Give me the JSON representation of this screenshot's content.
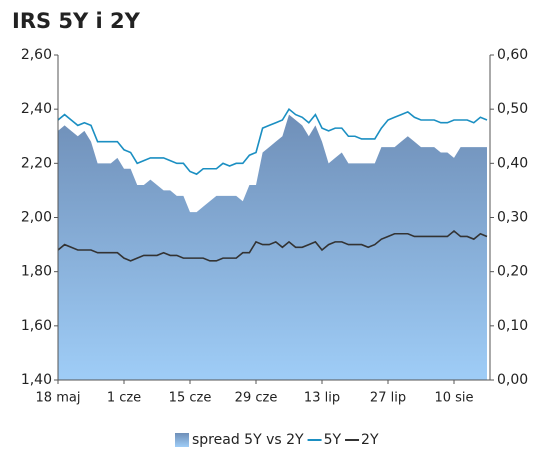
{
  "chart_data": {
    "type": "line",
    "title": "IRS 5Y i 2Y",
    "categories": [
      "18 maj",
      null,
      null,
      null,
      null,
      null,
      null,
      null,
      null,
      null,
      "1 cze",
      null,
      null,
      null,
      null,
      null,
      null,
      null,
      null,
      null,
      "15 cze",
      null,
      null,
      null,
      null,
      null,
      null,
      null,
      null,
      null,
      "29 cze",
      null,
      null,
      null,
      null,
      null,
      null,
      null,
      null,
      null,
      "13 lip",
      null,
      null,
      null,
      null,
      null,
      null,
      null,
      null,
      null,
      "27 lip",
      null,
      null,
      null,
      null,
      null,
      null,
      null,
      null,
      null,
      "10 sie",
      null,
      null,
      null,
      null,
      null
    ],
    "series": [
      {
        "name": "spread 5Y vs 2Y",
        "type": "area",
        "axis": "y2",
        "color": "#6f8fb8",
        "values": [
          0.46,
          0.47,
          0.46,
          0.45,
          0.46,
          0.44,
          0.4,
          0.4,
          0.4,
          0.41,
          0.39,
          0.39,
          0.36,
          0.36,
          0.37,
          0.36,
          0.35,
          0.35,
          0.34,
          0.34,
          0.31,
          0.31,
          0.32,
          0.33,
          0.34,
          0.34,
          0.34,
          0.34,
          0.33,
          0.36,
          0.36,
          0.42,
          0.43,
          0.44,
          0.45,
          0.49,
          0.48,
          0.47,
          0.45,
          0.47,
          0.44,
          0.4,
          0.41,
          0.42,
          0.4,
          0.4,
          0.4,
          0.4,
          0.4,
          0.43,
          0.43,
          0.43,
          0.44,
          0.45,
          0.44,
          0.43,
          0.43,
          0.43,
          0.42,
          0.42,
          0.41,
          0.43,
          0.43,
          0.43,
          0.43,
          0.43
        ]
      },
      {
        "name": "5Y",
        "type": "line",
        "color": "#1b8fc2",
        "values": [
          2.36,
          2.38,
          2.36,
          2.34,
          2.35,
          2.34,
          2.28,
          2.28,
          2.28,
          2.28,
          2.25,
          2.24,
          2.2,
          2.21,
          2.22,
          2.22,
          2.22,
          2.21,
          2.2,
          2.2,
          2.17,
          2.16,
          2.18,
          2.18,
          2.18,
          2.2,
          2.19,
          2.2,
          2.2,
          2.23,
          2.24,
          2.33,
          2.34,
          2.35,
          2.36,
          2.4,
          2.38,
          2.37,
          2.35,
          2.38,
          2.33,
          2.32,
          2.33,
          2.33,
          2.3,
          2.3,
          2.29,
          2.29,
          2.29,
          2.33,
          2.36,
          2.37,
          2.38,
          2.39,
          2.37,
          2.36,
          2.36,
          2.36,
          2.35,
          2.35,
          2.36,
          2.36,
          2.36,
          2.35,
          2.37,
          2.36
        ]
      },
      {
        "name": "2Y",
        "type": "line",
        "color": "#333333",
        "values": [
          1.88,
          1.9,
          1.89,
          1.88,
          1.88,
          1.88,
          1.87,
          1.87,
          1.87,
          1.87,
          1.85,
          1.84,
          1.85,
          1.86,
          1.86,
          1.86,
          1.87,
          1.86,
          1.86,
          1.85,
          1.85,
          1.85,
          1.85,
          1.84,
          1.84,
          1.85,
          1.85,
          1.85,
          1.87,
          1.87,
          1.91,
          1.9,
          1.9,
          1.91,
          1.89,
          1.91,
          1.89,
          1.89,
          1.9,
          1.91,
          1.88,
          1.9,
          1.91,
          1.91,
          1.9,
          1.9,
          1.9,
          1.89,
          1.9,
          1.92,
          1.93,
          1.94,
          1.94,
          1.94,
          1.93,
          1.93,
          1.93,
          1.93,
          1.93,
          1.93,
          1.95,
          1.93,
          1.93,
          1.92,
          1.94,
          1.93
        ]
      }
    ],
    "ylim": [
      1.4,
      2.6
    ],
    "yticks": [
      {
        "value": 1.4,
        "label": "1,40"
      },
      {
        "value": 1.6,
        "label": "1,60"
      },
      {
        "value": 1.8,
        "label": "1,80"
      },
      {
        "value": 2.0,
        "label": "2,00"
      },
      {
        "value": 2.2,
        "label": "2,20"
      },
      {
        "value": 2.4,
        "label": "2,40"
      },
      {
        "value": 2.6,
        "label": "2,60"
      }
    ],
    "y2lim": [
      0,
      0.6
    ],
    "y2ticks": [
      {
        "value": 0,
        "label": "0,00"
      },
      {
        "value": 0.1,
        "label": "0,10"
      },
      {
        "value": 0.2,
        "label": "0,20"
      },
      {
        "value": 0.3,
        "label": "0,30"
      },
      {
        "value": 0.4,
        "label": "0,40"
      },
      {
        "value": 0.5,
        "label": "0,50"
      },
      {
        "value": 0.6,
        "label": "0,60"
      }
    ],
    "grid": false,
    "legend": "bottom"
  }
}
